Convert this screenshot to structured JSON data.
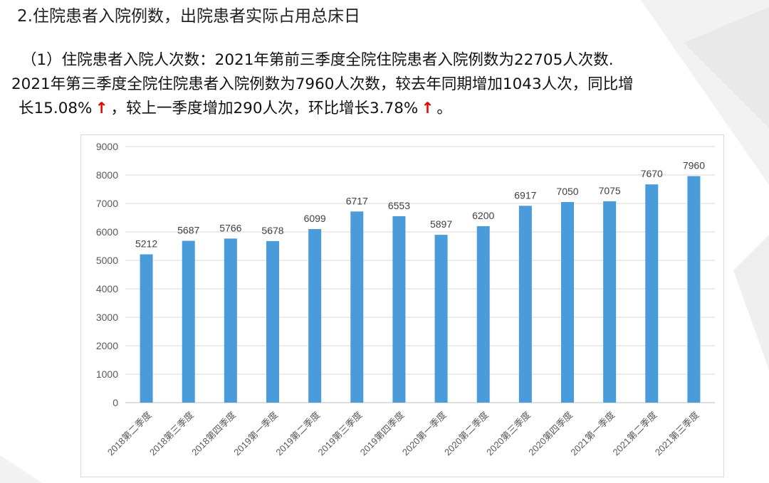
{
  "heading": "2.住院患者入院例数，出院患者实际占用总床日",
  "paragraph": {
    "line1": "（1）住院患者入院人次数：2021年第前三季度全院住院患者入院例数为22705人次数.",
    "line2": "2021年第三季度全院住院患者入院例数为7960人次数，较去年同期增加1043人次，同比增",
    "line3_a": "长15.08%",
    "line3_b": "，较上一季度增加290人次，环比增长3.78%",
    "line3_c": "。",
    "arrow": "↑"
  },
  "colors": {
    "bar": "#4a9bd9",
    "arrow": "#e60000"
  },
  "chart_data": {
    "type": "bar",
    "title": "",
    "xlabel": "",
    "ylabel": "",
    "ylim": [
      0,
      9000
    ],
    "yticks": [
      0,
      1000,
      2000,
      3000,
      4000,
      5000,
      6000,
      7000,
      8000,
      9000
    ],
    "grid": true,
    "categories": [
      "2018第二季度",
      "2018第三季度",
      "2018第四季度",
      "2019第一季度",
      "2019第二季度",
      "2019第三季度",
      "2019第四季度",
      "2020第一季度",
      "2020第二季度",
      "2020第三季度",
      "2020第四季度",
      "2021第一季度",
      "2021第二季度",
      "2021第三季度"
    ],
    "values": [
      5212,
      5687,
      5766,
      5678,
      6099,
      6717,
      6553,
      5897,
      6200,
      6917,
      7050,
      7075,
      7670,
      7960
    ]
  }
}
